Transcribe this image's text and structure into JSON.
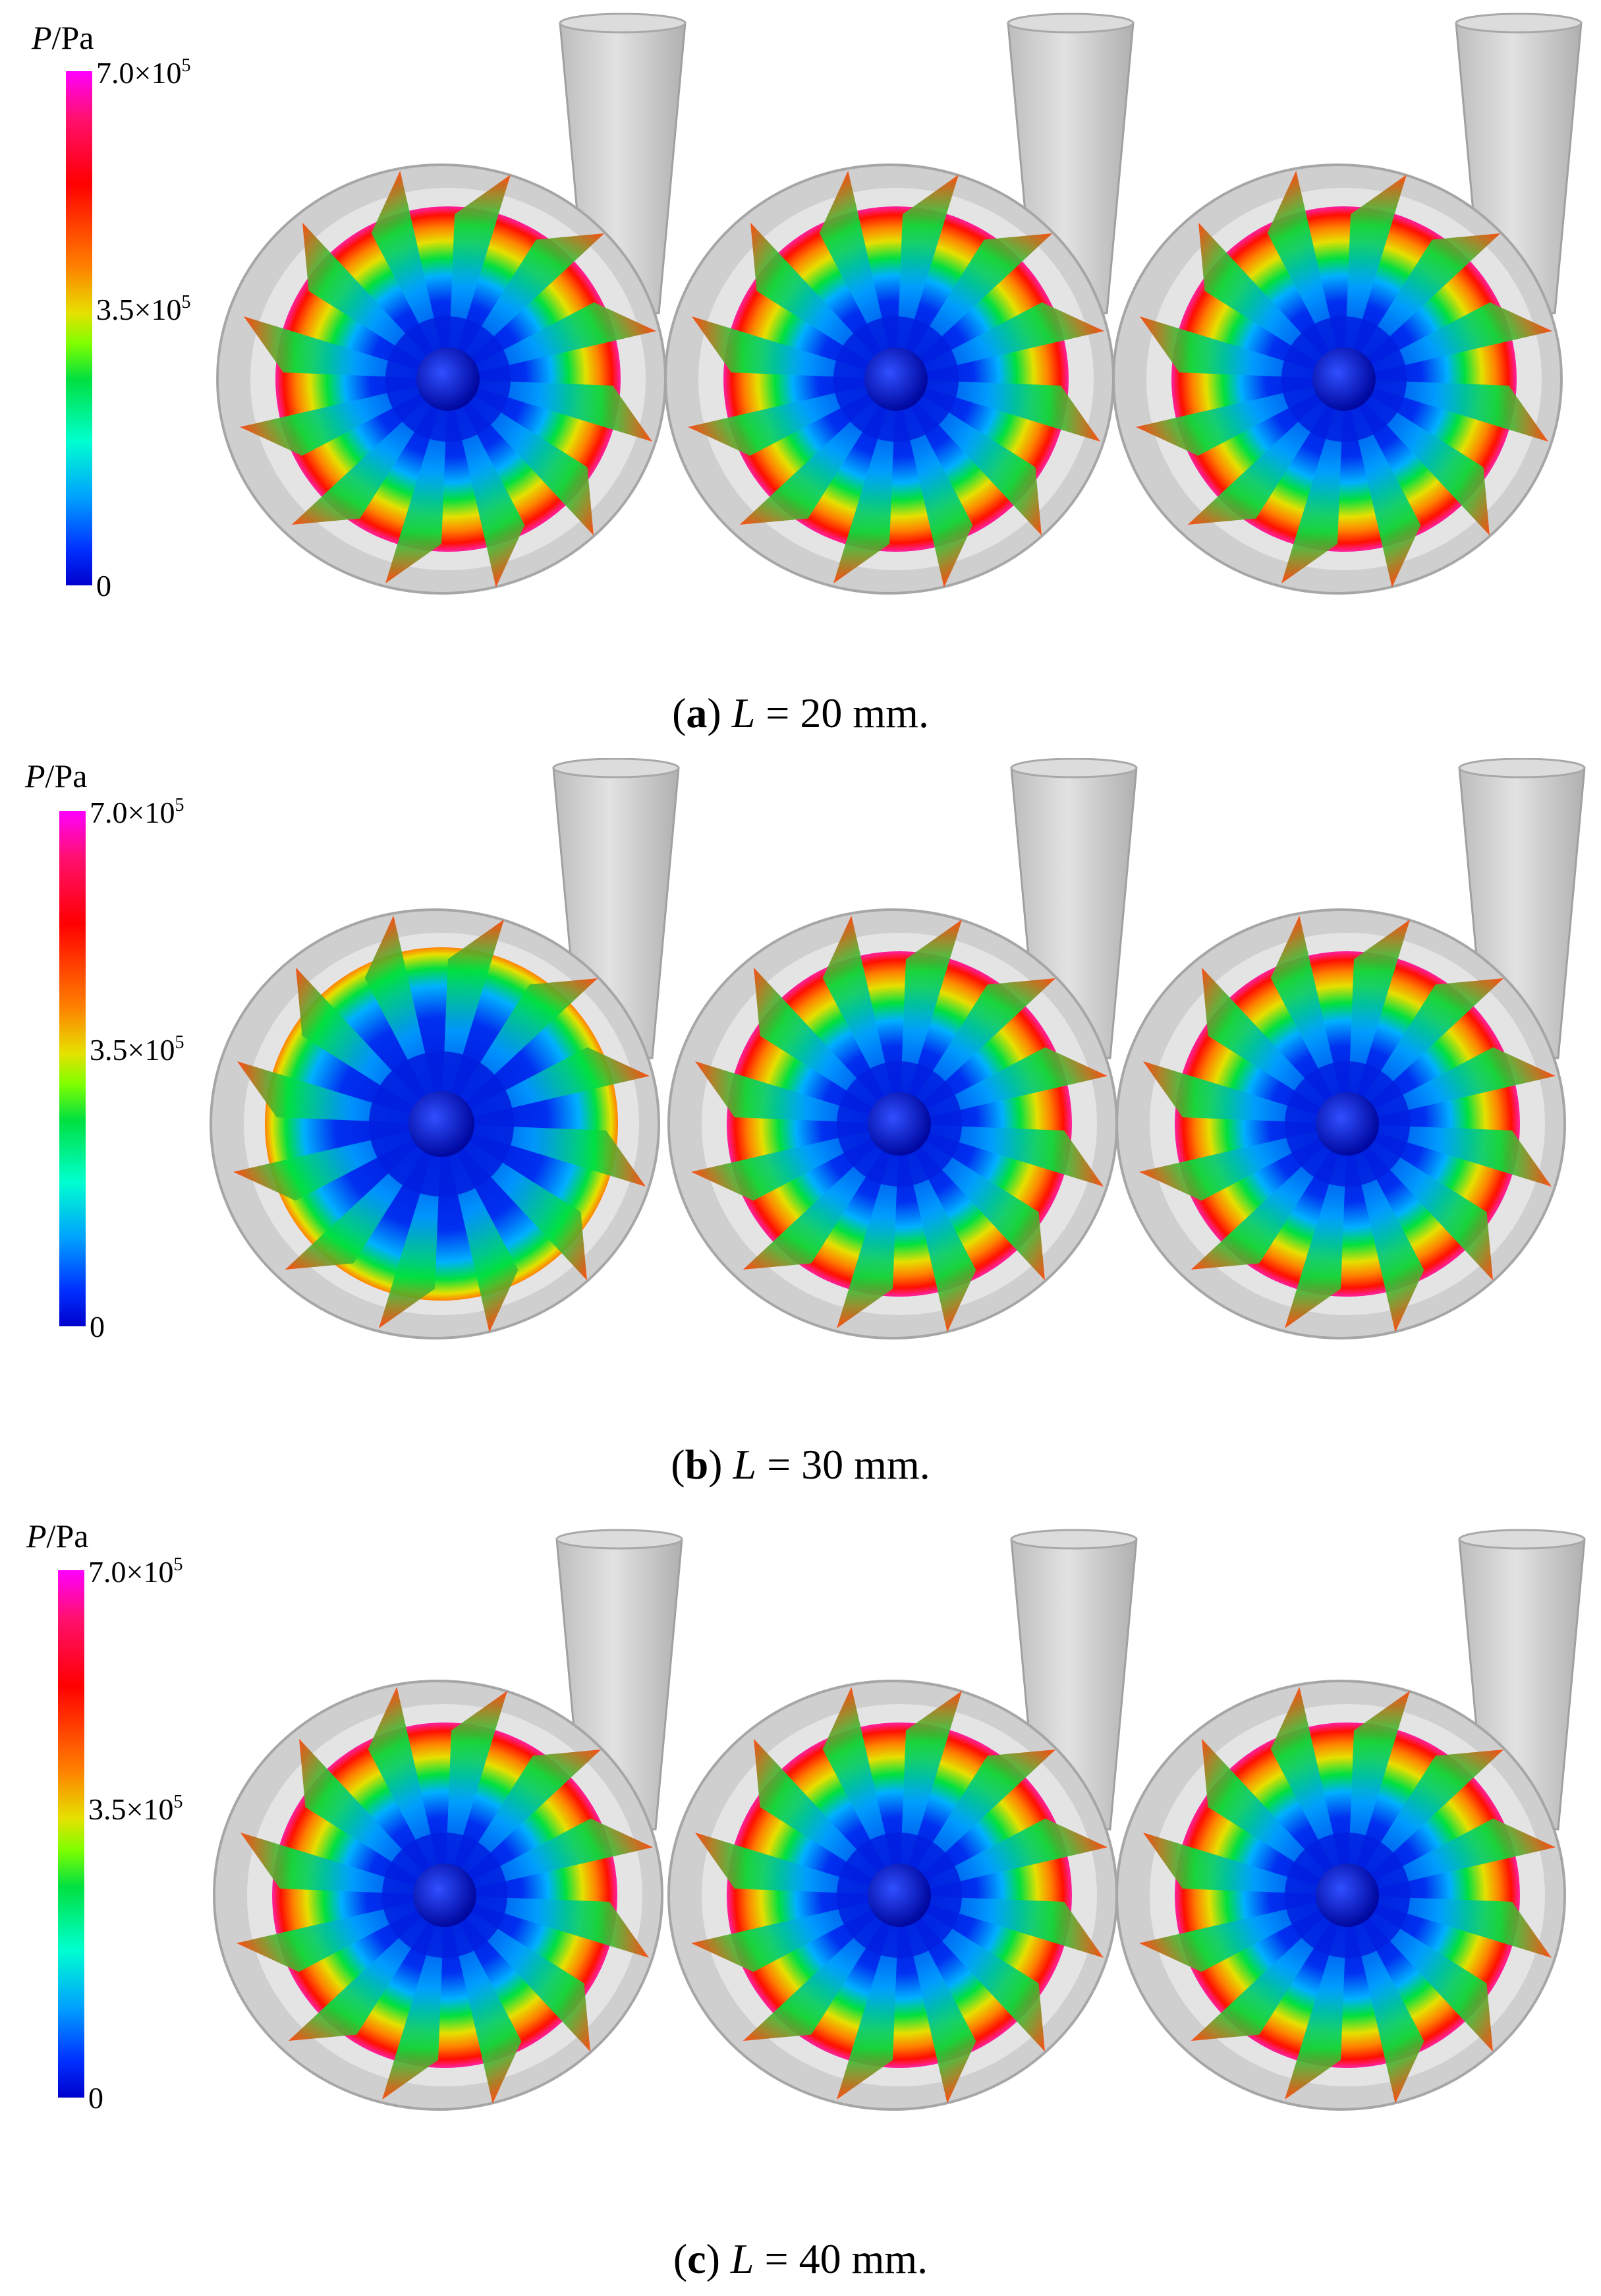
{
  "colorbar": {
    "unit_var": "P",
    "unit_sep": "/",
    "unit_text": "Pa",
    "tick_max_mantissa": "7.0×10",
    "tick_max_exp": "5",
    "tick_mid_mantissa": "3.5×10",
    "tick_mid_exp": "5",
    "tick_min": "0",
    "colors": [
      "#ff00ff",
      "#ff0000",
      "#ff8000",
      "#e6e000",
      "#00e040",
      "#00ffd0",
      "#00a0ff",
      "#0000cc"
    ]
  },
  "panels": [
    {
      "letter": "a",
      "var": "L",
      "value": " = 20 mm."
    },
    {
      "letter": "b",
      "var": "L",
      "value": " = 30 mm."
    },
    {
      "letter": "c",
      "var": "L",
      "value": " = 40 mm."
    }
  ],
  "colors": {
    "casing": "#c8c8c8",
    "casing_edge": "#a6a6a6",
    "outlet": "#d2d2d2",
    "low_pressure": "#0018e6",
    "mid_pressure": "#00e040",
    "high_pressure": "#ff2000"
  }
}
